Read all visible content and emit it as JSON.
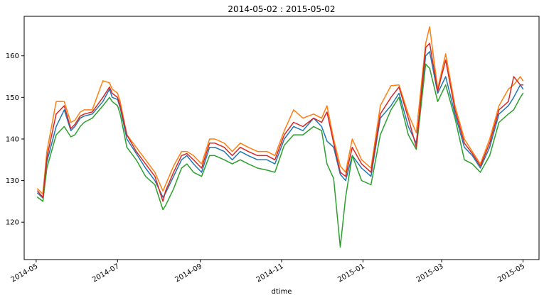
{
  "chart_data": {
    "type": "line",
    "title": "2014-05-02 : 2015-05-02",
    "xlabel": "dtime",
    "ylabel": "",
    "xlim": [
      "2014-04-22",
      "2015-05-13"
    ],
    "ylim": [
      111,
      169.5
    ],
    "x_ticks": [
      "2014-05",
      "2014-07",
      "2014-09",
      "2014-11",
      "2015-01",
      "2015-03",
      "2015-05"
    ],
    "y_ticks": [
      120,
      130,
      140,
      150,
      160
    ],
    "grid": false,
    "legend": "none",
    "colors": [
      "#1f77b4",
      "#ff7f0e",
      "#2ca02c",
      "#d62728"
    ],
    "series": [
      {
        "color": "#1f77b4",
        "x": [
          "2014-05-02",
          "2014-05-06",
          "2014-05-09",
          "2014-05-16",
          "2014-05-22",
          "2014-05-27",
          "2014-05-30",
          "2014-06-03",
          "2014-06-06",
          "2014-06-12",
          "2014-06-20",
          "2014-06-25",
          "2014-06-27",
          "2014-07-01",
          "2014-07-03",
          "2014-07-08",
          "2014-07-15",
          "2014-07-22",
          "2014-07-29",
          "2014-08-04",
          "2014-08-06",
          "2014-08-12",
          "2014-08-18",
          "2014-08-22",
          "2014-08-27",
          "2014-09-02",
          "2014-09-08",
          "2014-09-12",
          "2014-09-19",
          "2014-09-25",
          "2014-10-01",
          "2014-10-07",
          "2014-10-14",
          "2014-10-21",
          "2014-10-27",
          "2014-11-03",
          "2014-11-10",
          "2014-11-17",
          "2014-11-25",
          "2014-12-01",
          "2014-12-05",
          "2014-12-10",
          "2014-12-15",
          "2014-12-19",
          "2014-12-24",
          "2014-12-31",
          "2015-01-07",
          "2015-01-14",
          "2015-01-22",
          "2015-01-28",
          "2015-02-04",
          "2015-02-10",
          "2015-02-17",
          "2015-02-20",
          "2015-02-26",
          "2015-03-04",
          "2015-03-11",
          "2015-03-18",
          "2015-03-24",
          "2015-03-30",
          "2015-04-06",
          "2015-04-13",
          "2015-04-20",
          "2015-04-24",
          "2015-04-29",
          "2015-05-01"
        ],
        "y": [
          127,
          125.8,
          134.5,
          143,
          147,
          142,
          143,
          145,
          145.5,
          146,
          149,
          152,
          150,
          149.5,
          147.5,
          140,
          136.5,
          133,
          130,
          126,
          127,
          131,
          135,
          136,
          134,
          132,
          138,
          138,
          137,
          135,
          137,
          136,
          135,
          135,
          134,
          140,
          143,
          142,
          145,
          143,
          139.5,
          138,
          131.5,
          130,
          136,
          133,
          131,
          145,
          148,
          151,
          143,
          139,
          160,
          161,
          151,
          155,
          146,
          138,
          136,
          133,
          138,
          146,
          148,
          150,
          153,
          152
        ]
      },
      {
        "color": "#ff7f0e",
        "x": [
          "2014-05-02",
          "2014-05-06",
          "2014-05-09",
          "2014-05-16",
          "2014-05-22",
          "2014-05-27",
          "2014-05-30",
          "2014-06-03",
          "2014-06-06",
          "2014-06-12",
          "2014-06-20",
          "2014-06-25",
          "2014-06-27",
          "2014-07-01",
          "2014-07-03",
          "2014-07-08",
          "2014-07-15",
          "2014-07-22",
          "2014-07-29",
          "2014-08-04",
          "2014-08-06",
          "2014-08-12",
          "2014-08-18",
          "2014-08-22",
          "2014-08-27",
          "2014-09-02",
          "2014-09-08",
          "2014-09-12",
          "2014-09-19",
          "2014-09-25",
          "2014-10-01",
          "2014-10-07",
          "2014-10-14",
          "2014-10-21",
          "2014-10-27",
          "2014-11-03",
          "2014-11-10",
          "2014-11-17",
          "2014-11-25",
          "2014-12-01",
          "2014-12-05",
          "2014-12-10",
          "2014-12-15",
          "2014-12-19",
          "2014-12-24",
          "2014-12-31",
          "2015-01-07",
          "2015-01-14",
          "2015-01-22",
          "2015-01-28",
          "2015-02-04",
          "2015-02-10",
          "2015-02-17",
          "2015-02-20",
          "2015-02-26",
          "2015-03-04",
          "2015-03-11",
          "2015-03-18",
          "2015-03-24",
          "2015-03-30",
          "2015-04-06",
          "2015-04-13",
          "2015-04-20",
          "2015-04-24",
          "2015-04-29",
          "2015-05-01"
        ],
        "y": [
          128,
          126.8,
          137,
          149,
          149,
          144,
          144.5,
          146.5,
          147,
          147,
          154,
          153.5,
          152,
          151,
          149,
          141,
          138,
          135,
          132,
          127.5,
          129,
          133.5,
          137,
          137,
          136,
          134,
          140,
          140,
          139,
          137,
          139,
          138,
          137,
          137,
          136,
          142,
          147,
          145,
          146,
          145,
          148,
          140,
          133.5,
          132,
          140,
          135,
          133,
          148,
          152.8,
          153,
          146,
          141.5,
          163,
          167,
          152,
          160.5,
          148,
          140,
          137,
          134,
          140,
          148,
          152,
          153,
          155,
          154
        ]
      },
      {
        "color": "#2ca02c",
        "x": [
          "2014-05-02",
          "2014-05-06",
          "2014-05-09",
          "2014-05-16",
          "2014-05-22",
          "2014-05-27",
          "2014-05-30",
          "2014-06-03",
          "2014-06-06",
          "2014-06-12",
          "2014-06-20",
          "2014-06-25",
          "2014-06-27",
          "2014-07-01",
          "2014-07-03",
          "2014-07-08",
          "2014-07-15",
          "2014-07-22",
          "2014-07-29",
          "2014-08-04",
          "2014-08-06",
          "2014-08-12",
          "2014-08-18",
          "2014-08-22",
          "2014-08-27",
          "2014-09-02",
          "2014-09-08",
          "2014-09-12",
          "2014-09-19",
          "2014-09-25",
          "2014-10-01",
          "2014-10-07",
          "2014-10-14",
          "2014-10-21",
          "2014-10-27",
          "2014-11-03",
          "2014-11-10",
          "2014-11-17",
          "2014-11-25",
          "2014-12-01",
          "2014-12-05",
          "2014-12-10",
          "2014-12-15",
          "2014-12-19",
          "2014-12-24",
          "2014-12-31",
          "2015-01-07",
          "2015-01-14",
          "2015-01-22",
          "2015-01-28",
          "2015-02-04",
          "2015-02-10",
          "2015-02-17",
          "2015-02-20",
          "2015-02-26",
          "2015-03-04",
          "2015-03-11",
          "2015-03-18",
          "2015-03-24",
          "2015-03-30",
          "2015-04-06",
          "2015-04-13",
          "2015-04-20",
          "2015-04-24",
          "2015-04-29",
          "2015-05-01"
        ],
        "y": [
          126,
          125,
          133,
          141,
          143,
          140.5,
          141,
          143,
          144,
          145,
          148,
          150,
          149,
          148,
          146,
          138,
          135,
          131,
          129,
          123,
          124,
          128,
          133,
          134,
          132,
          131,
          136,
          136,
          135,
          134,
          135,
          134,
          133,
          132.5,
          132,
          138.5,
          141,
          141,
          143,
          142,
          134,
          130.5,
          114,
          126,
          136,
          130,
          129,
          141,
          147,
          150,
          141,
          137.5,
          158,
          157,
          149,
          153,
          145,
          135,
          134,
          132,
          136,
          144,
          146,
          147,
          150,
          151
        ]
      },
      {
        "color": "#d62728",
        "x": [
          "2014-05-02",
          "2014-05-06",
          "2014-05-09",
          "2014-05-16",
          "2014-05-22",
          "2014-05-27",
          "2014-05-30",
          "2014-06-03",
          "2014-06-06",
          "2014-06-12",
          "2014-06-20",
          "2014-06-25",
          "2014-06-27",
          "2014-07-01",
          "2014-07-03",
          "2014-07-08",
          "2014-07-15",
          "2014-07-22",
          "2014-07-29",
          "2014-08-04",
          "2014-08-06",
          "2014-08-12",
          "2014-08-18",
          "2014-08-22",
          "2014-08-27",
          "2014-09-02",
          "2014-09-08",
          "2014-09-12",
          "2014-09-19",
          "2014-09-25",
          "2014-10-01",
          "2014-10-07",
          "2014-10-14",
          "2014-10-21",
          "2014-10-27",
          "2014-11-03",
          "2014-11-10",
          "2014-11-17",
          "2014-11-25",
          "2014-12-01",
          "2014-12-05",
          "2014-12-10",
          "2014-12-15",
          "2014-12-19",
          "2014-12-24",
          "2014-12-31",
          "2015-01-07",
          "2015-01-14",
          "2015-01-22",
          "2015-01-28",
          "2015-02-04",
          "2015-02-10",
          "2015-02-17",
          "2015-02-20",
          "2015-02-26",
          "2015-03-04",
          "2015-03-11",
          "2015-03-18",
          "2015-03-24",
          "2015-03-30",
          "2015-04-06",
          "2015-04-13",
          "2015-04-20",
          "2015-04-24",
          "2015-04-29",
          "2015-05-01"
        ],
        "y": [
          127.5,
          126,
          135.5,
          146,
          148,
          142.5,
          143.5,
          145.5,
          146,
          146.5,
          150,
          152.5,
          151,
          150,
          148,
          141,
          137,
          134,
          131,
          125,
          127.5,
          132,
          136,
          136.5,
          135,
          133,
          139,
          139,
          138,
          136,
          138,
          137,
          136,
          136,
          135,
          141,
          144,
          143,
          145,
          144,
          146.5,
          139,
          132,
          131,
          138,
          134,
          132,
          146,
          150,
          152.5,
          145,
          138,
          162,
          163,
          151.5,
          159,
          147,
          139,
          136.5,
          133.5,
          139,
          147,
          149,
          155,
          153,
          153
        ]
      }
    ]
  }
}
